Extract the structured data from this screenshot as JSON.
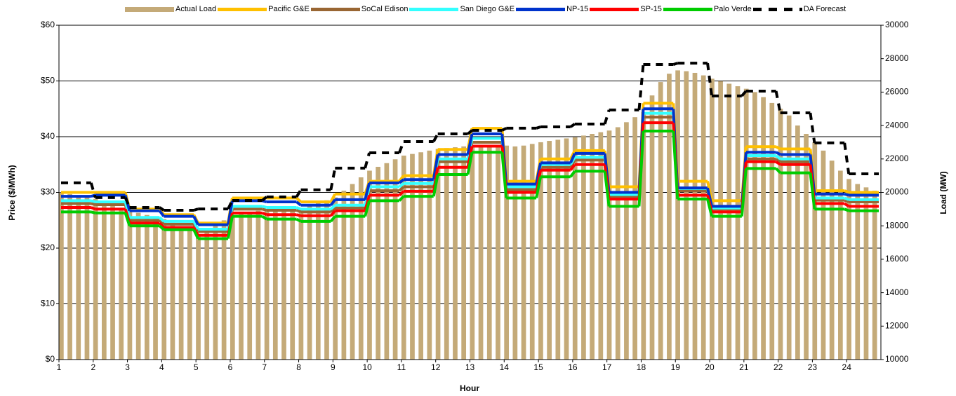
{
  "chart_data": {
    "type": "combo",
    "x_label": "Hour",
    "y_label": "Price ($/MWh)",
    "y2_label": "Load (MW)",
    "x": [
      1,
      2,
      3,
      4,
      5,
      6,
      7,
      8,
      9,
      10,
      11,
      12,
      13,
      14,
      15,
      16,
      17,
      18,
      19,
      20,
      21,
      22,
      23,
      24
    ],
    "xlim": [
      1,
      25
    ],
    "xticks": [
      1,
      2,
      3,
      4,
      5,
      6,
      7,
      8,
      9,
      10,
      11,
      12,
      13,
      14,
      15,
      16,
      17,
      18,
      19,
      20,
      21,
      22,
      23,
      24
    ],
    "ylim": [
      0,
      60
    ],
    "yticks": [
      {
        "value": 0,
        "label": "$0"
      },
      {
        "value": 10,
        "label": "$10"
      },
      {
        "value": 20,
        "label": "$20"
      },
      {
        "value": 30,
        "label": "$30"
      },
      {
        "value": 40,
        "label": "$40"
      },
      {
        "value": 50,
        "label": "$50"
      },
      {
        "value": 60,
        "label": "$60"
      }
    ],
    "y2lim": [
      10000,
      30000
    ],
    "y2ticks": [
      10000,
      12000,
      14000,
      16000,
      18000,
      20000,
      22000,
      24000,
      26000,
      28000,
      30000
    ],
    "grid": true,
    "legend": "top",
    "series": [
      {
        "name": "Actual Load",
        "type": "bar",
        "axis": "y2",
        "color": "#c4aa78",
        "x": [
          1,
          1.25,
          1.5,
          1.75,
          2,
          2.25,
          2.5,
          2.75,
          3,
          3.25,
          3.5,
          3.75,
          4,
          4.25,
          4.5,
          4.75,
          5,
          5.25,
          5.5,
          5.75,
          6,
          6.25,
          6.5,
          6.75,
          7,
          7.25,
          7.5,
          7.75,
          8,
          8.25,
          8.5,
          8.75,
          9,
          9.25,
          9.5,
          9.75,
          10,
          10.25,
          10.5,
          10.75,
          11,
          11.25,
          11.5,
          11.75,
          12,
          12.25,
          12.5,
          12.75,
          13,
          13.25,
          13.5,
          13.75,
          14,
          14.25,
          14.5,
          14.75,
          15,
          15.25,
          15.5,
          15.75,
          16,
          16.25,
          16.5,
          16.75,
          17,
          17.25,
          17.5,
          17.75,
          18,
          18.25,
          18.5,
          18.75,
          19,
          19.25,
          19.5,
          19.75,
          20,
          20.25,
          20.5,
          20.75,
          21,
          21.25,
          21.5,
          21.75,
          22,
          22.25,
          22.5,
          22.75,
          23,
          23.25,
          23.5,
          23.75,
          24,
          24.25,
          24.5,
          24.75
        ],
        "values": [
          20000,
          19900,
          19800,
          19700,
          19600,
          19420,
          19250,
          19080,
          18900,
          18780,
          18650,
          18530,
          18400,
          18180,
          17950,
          17730,
          17500,
          17780,
          18050,
          18330,
          18600,
          18700,
          18800,
          18900,
          19000,
          18980,
          18970,
          18980,
          19000,
          19180,
          19350,
          19530,
          19700,
          20100,
          20500,
          20900,
          21300,
          21530,
          21750,
          21980,
          22200,
          22300,
          22400,
          22500,
          22600,
          22650,
          22700,
          22750,
          22800,
          22800,
          22780,
          22780,
          22800,
          22750,
          22800,
          22900,
          23000,
          23080,
          23150,
          23230,
          23300,
          23400,
          23500,
          23600,
          23700,
          23900,
          24200,
          24500,
          24800,
          25800,
          26600,
          27100,
          27300,
          27250,
          27150,
          27000,
          26800,
          26650,
          26500,
          26350,
          26200,
          26000,
          25700,
          25350,
          25000,
          24600,
          24000,
          23500,
          23000,
          22500,
          21900,
          21300,
          20800,
          20500,
          20300,
          20100
        ]
      },
      {
        "name": "Pacific G&E",
        "type": "step",
        "color": "#ffc000",
        "values": [
          30,
          30,
          27,
          26,
          24.5,
          29,
          29,
          28.3,
          29.7,
          32,
          33,
          37.7,
          41.5,
          32,
          36,
          37.5,
          31,
          46,
          32,
          28.5,
          38.2,
          37.8,
          30.3,
          30
        ]
      },
      {
        "name": "SoCal Edison",
        "type": "step",
        "color": "#996633",
        "values": [
          28,
          27.8,
          25,
          24.3,
          23,
          27,
          26.8,
          26.5,
          27.2,
          30.3,
          31,
          35.5,
          39,
          30.5,
          34.5,
          35.8,
          29.2,
          43.5,
          30.3,
          27,
          36,
          35.5,
          28.6,
          28.3
        ]
      },
      {
        "name": "San Diego G&E",
        "type": "step",
        "color": "#33ffff",
        "values": [
          28.5,
          28.3,
          25.5,
          24.8,
          23.4,
          27.5,
          27.3,
          27,
          27.7,
          31,
          31.6,
          36,
          39.7,
          31,
          35,
          36.3,
          29.6,
          44.2,
          30.7,
          27.2,
          36.6,
          36,
          29,
          28.7
        ]
      },
      {
        "name": "NP-15",
        "type": "step",
        "color": "#0033cc",
        "values": [
          29.3,
          29.5,
          26.7,
          25.7,
          24.2,
          28.5,
          28.3,
          27.7,
          28.7,
          31.7,
          32.3,
          36.8,
          40.5,
          31.5,
          35.3,
          37,
          30,
          45,
          30.8,
          27.5,
          37.2,
          36.8,
          29.7,
          29.5
        ]
      },
      {
        "name": "SP-15",
        "type": "step",
        "color": "#ff0000",
        "values": [
          27.3,
          27,
          24.5,
          23.7,
          22.3,
          26.3,
          26,
          25.8,
          26.7,
          29.5,
          30.2,
          34.5,
          38.3,
          30,
          34,
          35,
          28.8,
          42.5,
          29.5,
          26.5,
          35.5,
          35,
          28,
          27.5
        ]
      },
      {
        "name": "Palo Verde",
        "type": "step",
        "color": "#00cc00",
        "values": [
          26.5,
          26.3,
          24,
          23.3,
          21.7,
          25.7,
          25.2,
          24.8,
          25.7,
          28.5,
          29.3,
          33.2,
          37.2,
          29,
          32.8,
          33.8,
          27.5,
          41,
          28.8,
          25.7,
          34.3,
          33.5,
          27,
          26.7
        ]
      },
      {
        "name": "DA Forecast",
        "type": "step",
        "axis": "y2",
        "color": "#000000",
        "style": "dashed",
        "values": [
          20570,
          19690,
          19100,
          18930,
          19010,
          19520,
          19730,
          20150,
          21450,
          22370,
          23040,
          23500,
          23710,
          23840,
          23920,
          24090,
          24930,
          27650,
          27730,
          25770,
          26060,
          24760,
          22960,
          21110
        ]
      }
    ]
  }
}
